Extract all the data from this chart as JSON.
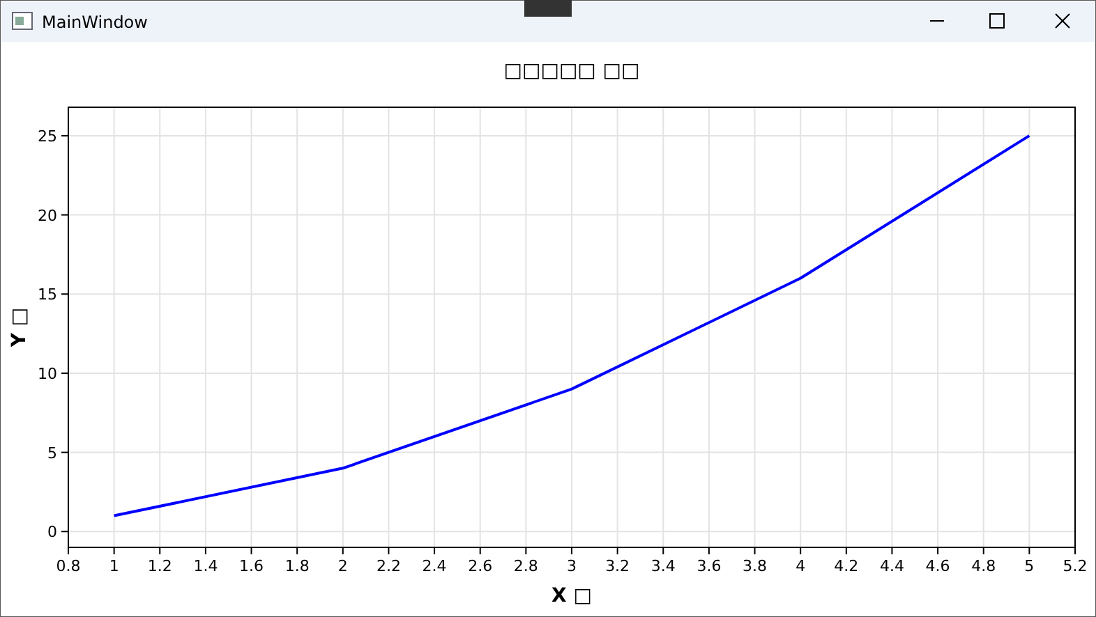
{
  "chart_data": {
    "type": "line",
    "title": "□□□□□ □□",
    "xlabel": "X □",
    "ylabel": "Y □",
    "annotations": [
      "MainWindow"
    ],
    "x": [
      1,
      2,
      3,
      4,
      5
    ],
    "series": [
      {
        "color": "#0000ff",
        "values": [
          1,
          4,
          9,
          16,
          25
        ]
      }
    ],
    "xlim": [
      0.8,
      5.2
    ],
    "xticks": [
      0.8,
      1,
      1.2,
      1.4,
      1.6,
      1.8,
      2,
      2.2,
      2.4,
      2.6,
      2.8,
      3,
      3.2,
      3.4,
      3.6,
      3.8,
      4,
      4.2,
      4.4,
      4.6,
      4.8,
      5,
      5.2
    ],
    "ylim": [
      -1,
      26.8
    ],
    "yticks": [
      0,
      5,
      10,
      15,
      20,
      25
    ],
    "grid": true,
    "marker": "none",
    "line_style": "solid"
  }
}
